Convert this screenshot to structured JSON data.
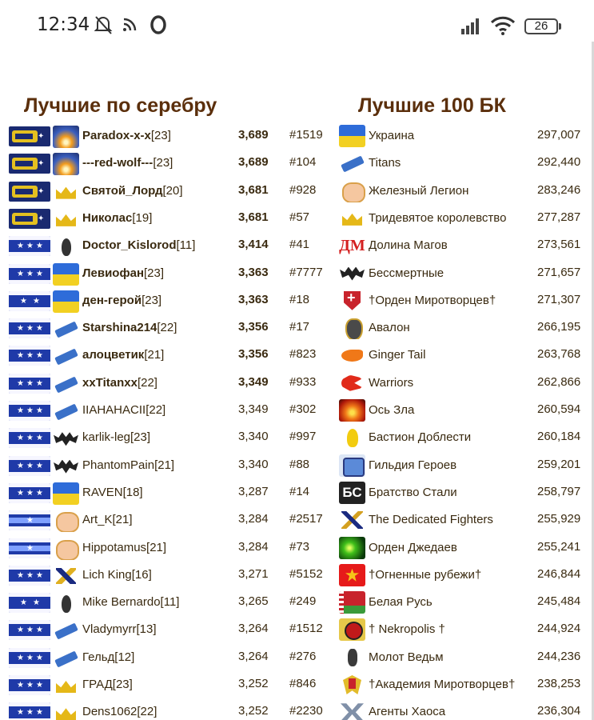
{
  "status_bar": {
    "time": "12:34",
    "icons": [
      "alarm-off-icon",
      "cast-icon",
      "opera-icon",
      "signal-icon",
      "wifi-icon"
    ],
    "battery": "26"
  },
  "players": {
    "title": "Лучшие по серебру",
    "rows": [
      {
        "rank_icon": "gold-rank",
        "emblem": "sun-emblem",
        "name": "Paradox-x-x",
        "level": "[23]",
        "score": "3,689",
        "clan_id": "#1519",
        "bold": true
      },
      {
        "rank_icon": "gold-rank",
        "emblem": "sun-emblem",
        "name": "---red-wolf---",
        "level": "[23]",
        "score": "3,689",
        "clan_id": "#104",
        "bold": true
      },
      {
        "rank_icon": "gold-rank",
        "emblem": "crown-emblem",
        "name": "Святой_Лорд",
        "level": "[20]",
        "score": "3,681",
        "clan_id": "#928",
        "bold": true
      },
      {
        "rank_icon": "gold-rank",
        "emblem": "crown-emblem",
        "name": "Николас",
        "level": "[19]",
        "score": "3,681",
        "clan_id": "#57",
        "bold": true
      },
      {
        "rank_icon": "star3-rank",
        "emblem": "drop-emblem",
        "name": "Doctor_Kislorod",
        "level": "[11]",
        "score": "3,414",
        "clan_id": "#41",
        "bold": true
      },
      {
        "rank_icon": "star3-rank",
        "emblem": "ukraine-emblem",
        "name": "Левиофан",
        "level": "[23]",
        "score": "3,363",
        "clan_id": "#7777",
        "bold": true
      },
      {
        "rank_icon": "star2-rank",
        "emblem": "ukraine-emblem",
        "name": "ден-герой",
        "level": "[23]",
        "score": "3,363",
        "clan_id": "#18",
        "bold": true
      },
      {
        "rank_icon": "star3-rank",
        "emblem": "weapon-emblem",
        "name": "Starshina214",
        "level": "[22]",
        "score": "3,356",
        "clan_id": "#17",
        "bold": true
      },
      {
        "rank_icon": "star3-rank",
        "emblem": "weapon-emblem",
        "name": "алоцветик",
        "level": "[21]",
        "score": "3,356",
        "clan_id": "#823",
        "bold": true
      },
      {
        "rank_icon": "star3-rank",
        "emblem": "weapon-emblem",
        "name": "xxTitanxx",
        "level": "[22]",
        "score": "3,349",
        "clan_id": "#933",
        "bold": true
      },
      {
        "rank_icon": "star3-rank",
        "emblem": "weapon-emblem",
        "name": "IIAHAHACII",
        "level": "[22]",
        "score": "3,349",
        "clan_id": "#302",
        "bold": false
      },
      {
        "rank_icon": "star3-rank",
        "emblem": "bat-emblem",
        "name": "karlik-leg",
        "level": "[23]",
        "score": "3,340",
        "clan_id": "#997",
        "bold": false
      },
      {
        "rank_icon": "star3-rank",
        "emblem": "bat-emblem",
        "name": "PhantomPain",
        "level": "[21]",
        "score": "3,340",
        "clan_id": "#88",
        "bold": false
      },
      {
        "rank_icon": "star3-rank",
        "emblem": "ukraine-emblem",
        "name": "RAVEN",
        "level": "[18]",
        "score": "3,287",
        "clan_id": "#14",
        "bold": false
      },
      {
        "rank_icon": "star1-rank",
        "emblem": "face-emblem",
        "name": "Art_K",
        "level": "[21]",
        "score": "3,284",
        "clan_id": "#2517",
        "bold": false
      },
      {
        "rank_icon": "star1-rank",
        "emblem": "face-emblem",
        "name": "Hippotamus",
        "level": "[21]",
        "score": "3,284",
        "clan_id": "#73",
        "bold": false
      },
      {
        "rank_icon": "star3-rank",
        "emblem": "sword-emblem",
        "name": "Lich King",
        "level": "[16]",
        "score": "3,271",
        "clan_id": "#5152",
        "bold": false
      },
      {
        "rank_icon": "star2-rank",
        "emblem": "drop-emblem",
        "name": "Mike Bernardo",
        "level": "[11]",
        "score": "3,265",
        "clan_id": "#249",
        "bold": false
      },
      {
        "rank_icon": "star3-rank",
        "emblem": "weapon-emblem",
        "name": "Vladymyrr",
        "level": "[13]",
        "score": "3,264",
        "clan_id": "#1512",
        "bold": false
      },
      {
        "rank_icon": "star3-rank",
        "emblem": "weapon-emblem",
        "name": "Гельд",
        "level": "[12]",
        "score": "3,264",
        "clan_id": "#276",
        "bold": false
      },
      {
        "rank_icon": "star3-rank",
        "emblem": "crown-emblem",
        "name": "ГРАД",
        "level": "[23]",
        "score": "3,252",
        "clan_id": "#846",
        "bold": false
      },
      {
        "rank_icon": "star3-rank",
        "emblem": "crown-emblem",
        "name": "Dens1062",
        "level": "[22]",
        "score": "3,252",
        "clan_id": "#2230",
        "bold": false
      }
    ]
  },
  "clans": {
    "title": "Лучшие 100 БК",
    "rows": [
      {
        "emblem": "ukraine-emblem",
        "name": "Украина",
        "score": "297,007"
      },
      {
        "emblem": "weapon-emblem",
        "name": "Titans",
        "score": "292,440"
      },
      {
        "emblem": "face-emblem",
        "name": "Железный Легион",
        "score": "283,246"
      },
      {
        "emblem": "crown-emblem",
        "name": "Тридевятое королевство",
        "score": "277,287"
      },
      {
        "emblem": "dm-emblem",
        "name": "Долина Магов",
        "score": "273,561",
        "tag": "ДМ"
      },
      {
        "emblem": "bat-emblem",
        "name": "Бессмертные",
        "score": "271,657"
      },
      {
        "emblem": "cross-emblem",
        "name": "†Орден Миротворцев†",
        "score": "271,307"
      },
      {
        "emblem": "shield-emblem",
        "name": "Авалон",
        "score": "266,195"
      },
      {
        "emblem": "fox-emblem",
        "name": "Ginger Tail",
        "score": "263,768"
      },
      {
        "emblem": "dragon-emblem",
        "name": "Warriors",
        "score": "262,866"
      },
      {
        "emblem": "fire-emblem",
        "name": "Ось Зла",
        "score": "260,594"
      },
      {
        "emblem": "flame-emblem",
        "name": "Бастион Доблести",
        "score": "260,184"
      },
      {
        "emblem": "guild-emblem",
        "name": "Гильдия Героев",
        "score": "259,201"
      },
      {
        "emblem": "bs-emblem",
        "name": "Братство Стали",
        "score": "258,797",
        "tag": "БС"
      },
      {
        "emblem": "figure-emblem",
        "name": "The Dedicated Fighters",
        "score": "255,929"
      },
      {
        "emblem": "green-emblem",
        "name": "Орден Джедаев",
        "score": "255,241"
      },
      {
        "emblem": "ogn-emblem",
        "name": "†Огненные рубежи†",
        "score": "246,844"
      },
      {
        "emblem": "belarus-emblem",
        "name": "Белая Русь",
        "score": "245,484"
      },
      {
        "emblem": "nekropolis-emblem",
        "name": "† Nekropolis †",
        "score": "244,924"
      },
      {
        "emblem": "hammer-emblem",
        "name": "Молот Ведьм",
        "score": "244,236"
      },
      {
        "emblem": "academy-emblem",
        "name": "†Академия Миротворцев†",
        "score": "238,253"
      },
      {
        "emblem": "chaos-emblem",
        "name": "Агенты Хаоса",
        "score": "236,304"
      }
    ]
  }
}
